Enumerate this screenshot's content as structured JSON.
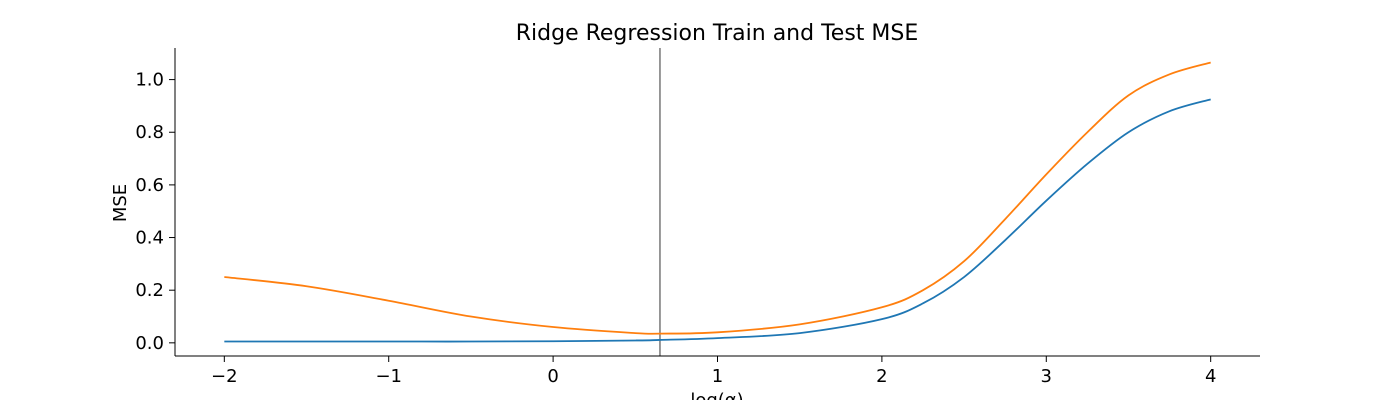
{
  "chart_data": {
    "type": "line",
    "title": "Ridge Regression Train and Test MSE",
    "xlabel": "log(α)",
    "ylabel": "MSE",
    "xlim": [
      -2.3,
      4.3
    ],
    "ylim": [
      -0.05,
      1.12
    ],
    "xticks": [
      -2,
      -1,
      0,
      1,
      2,
      3,
      4
    ],
    "xtick_labels": [
      "−2",
      "−1",
      "0",
      "1",
      "2",
      "3",
      "4"
    ],
    "yticks": [
      0.0,
      0.2,
      0.4,
      0.6,
      0.8,
      1.0
    ],
    "ytick_labels": [
      "0.0",
      "0.2",
      "0.4",
      "0.6",
      "0.8",
      "1.0"
    ],
    "vline": {
      "x": 0.65,
      "color": "#808080"
    },
    "x": [
      -2,
      -1.5,
      -1,
      -0.5,
      0,
      0.5,
      0.65,
      1,
      1.5,
      2,
      2.25,
      2.5,
      2.75,
      3,
      3.25,
      3.5,
      3.75,
      4
    ],
    "series": [
      {
        "color": "#1f77b4",
        "values": [
          0.005,
          0.005,
          0.005,
          0.005,
          0.006,
          0.009,
          0.011,
          0.018,
          0.037,
          0.09,
          0.15,
          0.25,
          0.39,
          0.54,
          0.68,
          0.8,
          0.88,
          0.925
        ]
      },
      {
        "color": "#ff7f0e",
        "values": [
          0.25,
          0.215,
          0.16,
          0.1,
          0.06,
          0.037,
          0.035,
          0.04,
          0.07,
          0.135,
          0.2,
          0.31,
          0.47,
          0.64,
          0.8,
          0.94,
          1.02,
          1.065
        ]
      }
    ]
  }
}
